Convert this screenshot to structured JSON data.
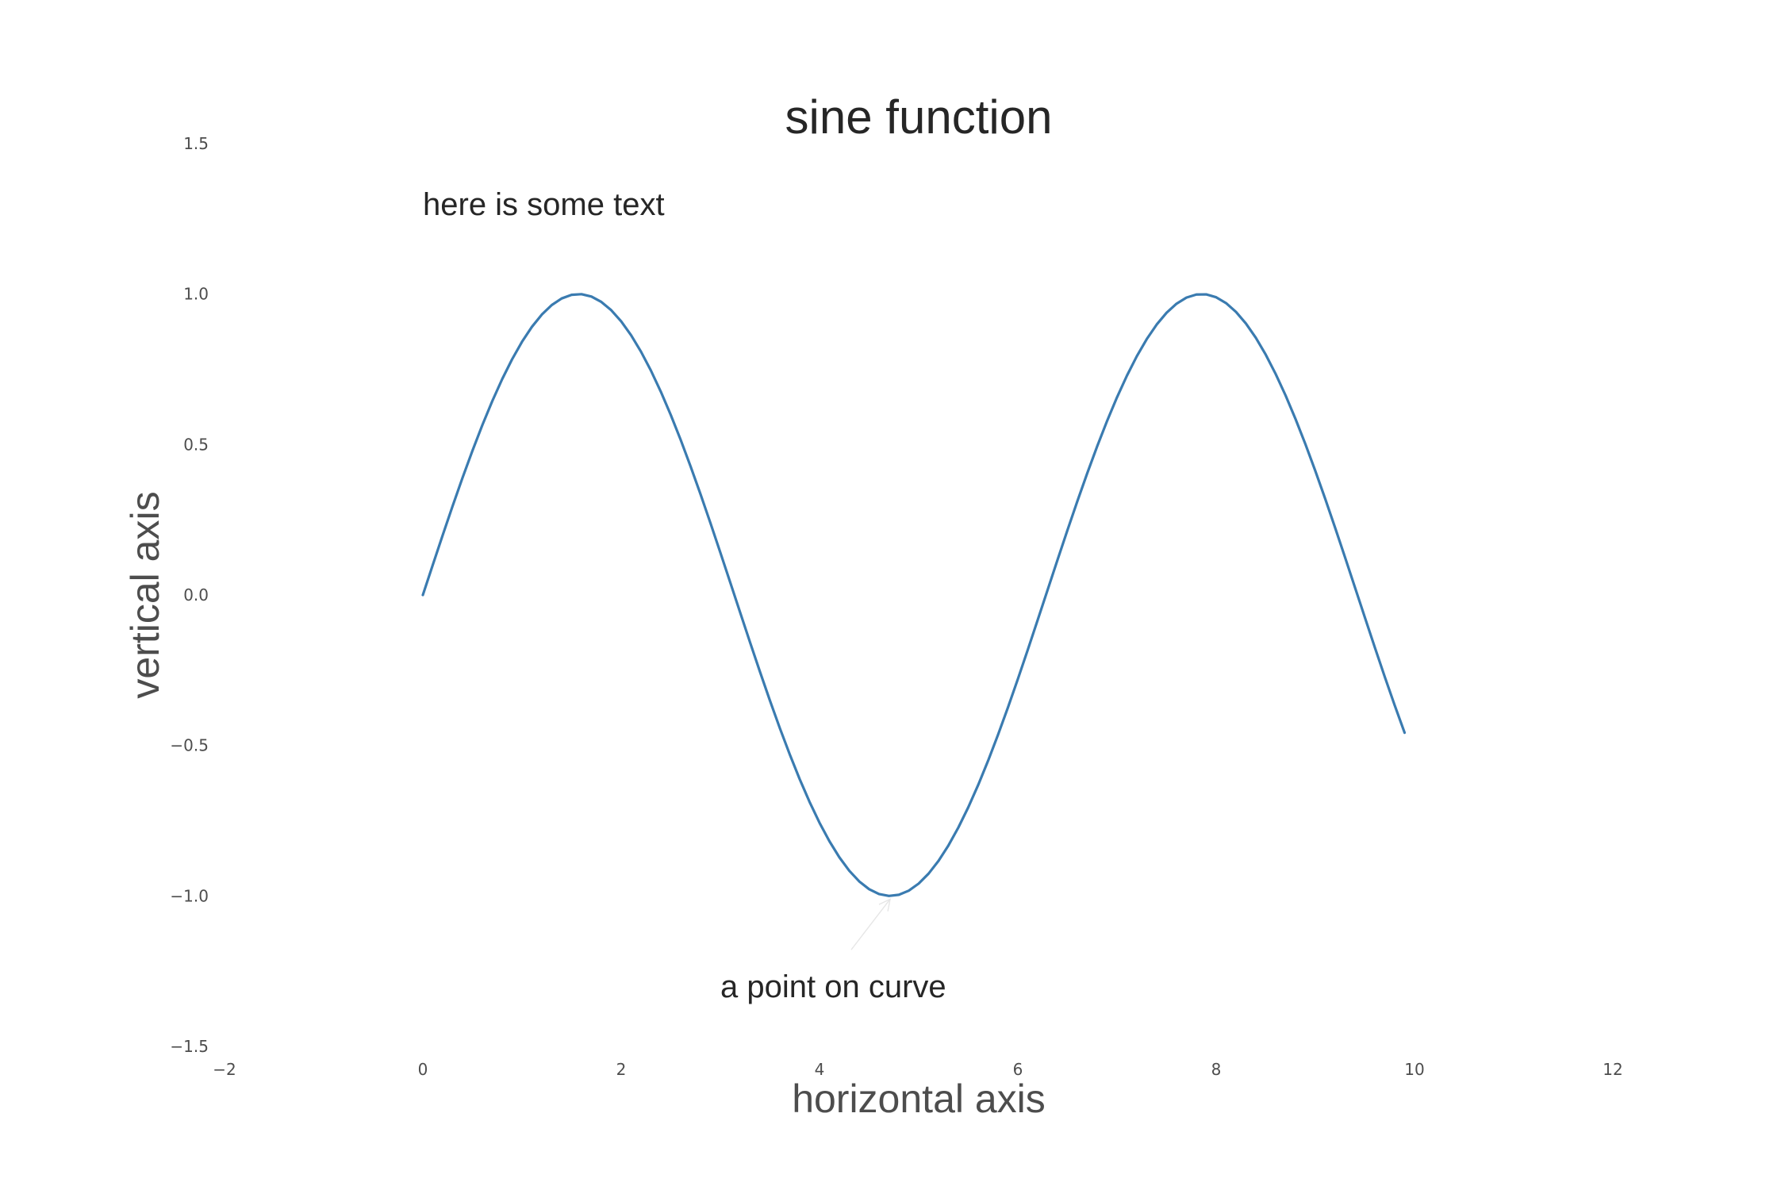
{
  "chart_data": {
    "type": "line",
    "title": "sine function",
    "xlabel": "horizontal axis",
    "ylabel": "vertical axis",
    "xlim": [
      -2,
      12
    ],
    "ylim": [
      -1.5,
      1.5
    ],
    "xticks": [
      -2,
      0,
      2,
      4,
      6,
      8,
      10,
      12
    ],
    "xtick_labels": [
      "−2",
      "0",
      "2",
      "4",
      "6",
      "8",
      "10",
      "12"
    ],
    "yticks": [
      -1.5,
      -1.0,
      -0.5,
      0.0,
      0.5,
      1.0,
      1.5
    ],
    "ytick_labels": [
      "−1.5",
      "−1.0",
      "−0.5",
      "0.0",
      "0.5",
      "1.0",
      "1.5"
    ],
    "grid": false,
    "series": [
      {
        "function": "sin(x)",
        "x_range": [
          0,
          9.9
        ],
        "step": 0.1,
        "color": "#3a7bb0"
      }
    ],
    "annotations": [
      {
        "text": "here is some text",
        "x": 0,
        "y": 1.3
      },
      {
        "text": "a point on curve",
        "x": 3,
        "y": -1.3,
        "arrow_to": [
          4.7123,
          -1.0
        ]
      }
    ]
  }
}
